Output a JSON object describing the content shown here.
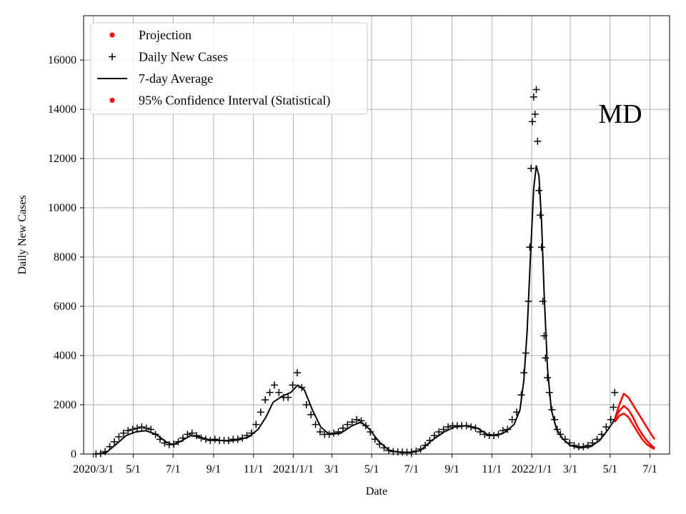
{
  "chart_data": {
    "type": "scatter",
    "xlabel": "Date",
    "ylabel": "Daily New Cases",
    "annotation": "MD",
    "grid": true,
    "legend_position": "top-left",
    "x_range": [
      "2020-02-15",
      "2022-07-31"
    ],
    "ylim": [
      0,
      17800
    ],
    "y_ticks": [
      0,
      2000,
      4000,
      6000,
      8000,
      10000,
      12000,
      14000,
      16000
    ],
    "x_ticks": [
      {
        "date": "2020-03-01",
        "label": "2020/3/1"
      },
      {
        "date": "2020-05-01",
        "label": "5/1"
      },
      {
        "date": "2020-07-01",
        "label": "7/1"
      },
      {
        "date": "2020-09-01",
        "label": "9/1"
      },
      {
        "date": "2020-11-01",
        "label": "11/1"
      },
      {
        "date": "2021-01-01",
        "label": "2021/1/1"
      },
      {
        "date": "2021-03-01",
        "label": "3/1"
      },
      {
        "date": "2021-05-01",
        "label": "5/1"
      },
      {
        "date": "2021-07-01",
        "label": "7/1"
      },
      {
        "date": "2021-09-01",
        "label": "9/1"
      },
      {
        "date": "2021-11-01",
        "label": "11/1"
      },
      {
        "date": "2022-01-01",
        "label": "2022/1/1"
      },
      {
        "date": "2022-03-01",
        "label": "3/1"
      },
      {
        "date": "2022-05-01",
        "label": "5/1"
      },
      {
        "date": "2022-07-01",
        "label": "7/1"
      }
    ],
    "legend": [
      {
        "label": "Projection",
        "marker": "dot",
        "color": "#ff0000"
      },
      {
        "label": "Daily New Cases",
        "marker": "plus",
        "color": "#000000"
      },
      {
        "label": "7-day Average",
        "marker": "line",
        "color": "#000000"
      },
      {
        "label": "95% Confidence Interval (Statistical)",
        "marker": "dot",
        "color": "#ff0000"
      }
    ],
    "series": [
      {
        "name": "Daily New Cases",
        "style": "plus",
        "color": "#000000",
        "points": [
          [
            "2020-03-05",
            5
          ],
          [
            "2020-03-12",
            20
          ],
          [
            "2020-03-19",
            100
          ],
          [
            "2020-03-26",
            300
          ],
          [
            "2020-04-02",
            500
          ],
          [
            "2020-04-09",
            700
          ],
          [
            "2020-04-16",
            850
          ],
          [
            "2020-04-23",
            950
          ],
          [
            "2020-04-30",
            1000
          ],
          [
            "2020-05-07",
            1050
          ],
          [
            "2020-05-14",
            1100
          ],
          [
            "2020-05-21",
            1050
          ],
          [
            "2020-05-28",
            1000
          ],
          [
            "2020-06-04",
            800
          ],
          [
            "2020-06-11",
            600
          ],
          [
            "2020-06-18",
            450
          ],
          [
            "2020-06-25",
            380
          ],
          [
            "2020-07-02",
            400
          ],
          [
            "2020-07-09",
            500
          ],
          [
            "2020-07-16",
            650
          ],
          [
            "2020-07-23",
            800
          ],
          [
            "2020-07-30",
            850
          ],
          [
            "2020-08-06",
            750
          ],
          [
            "2020-08-13",
            650
          ],
          [
            "2020-08-20",
            600
          ],
          [
            "2020-08-27",
            550
          ],
          [
            "2020-09-03",
            600
          ],
          [
            "2020-09-10",
            550
          ],
          [
            "2020-09-17",
            550
          ],
          [
            "2020-09-24",
            550
          ],
          [
            "2020-10-01",
            600
          ],
          [
            "2020-10-08",
            600
          ],
          [
            "2020-10-15",
            650
          ],
          [
            "2020-10-22",
            750
          ],
          [
            "2020-10-29",
            850
          ],
          [
            "2020-11-05",
            1200
          ],
          [
            "2020-11-12",
            1700
          ],
          [
            "2020-11-19",
            2200
          ],
          [
            "2020-11-26",
            2500
          ],
          [
            "2020-12-03",
            2800
          ],
          [
            "2020-12-10",
            2500
          ],
          [
            "2020-12-17",
            2300
          ],
          [
            "2020-12-24",
            2300
          ],
          [
            "2020-12-31",
            2800
          ],
          [
            "2021-01-07",
            3300
          ],
          [
            "2021-01-14",
            2700
          ],
          [
            "2021-01-21",
            2000
          ],
          [
            "2021-01-28",
            1600
          ],
          [
            "2021-02-04",
            1200
          ],
          [
            "2021-02-11",
            900
          ],
          [
            "2021-02-18",
            800
          ],
          [
            "2021-02-25",
            800
          ],
          [
            "2021-03-04",
            850
          ],
          [
            "2021-03-11",
            900
          ],
          [
            "2021-03-18",
            1050
          ],
          [
            "2021-03-25",
            1200
          ],
          [
            "2021-04-01",
            1300
          ],
          [
            "2021-04-08",
            1400
          ],
          [
            "2021-04-15",
            1350
          ],
          [
            "2021-04-22",
            1150
          ],
          [
            "2021-04-29",
            900
          ],
          [
            "2021-05-06",
            600
          ],
          [
            "2021-05-13",
            400
          ],
          [
            "2021-05-20",
            250
          ],
          [
            "2021-05-27",
            150
          ],
          [
            "2021-06-03",
            100
          ],
          [
            "2021-06-10",
            90
          ],
          [
            "2021-06-17",
            80
          ],
          [
            "2021-06-24",
            70
          ],
          [
            "2021-07-01",
            80
          ],
          [
            "2021-07-08",
            120
          ],
          [
            "2021-07-15",
            200
          ],
          [
            "2021-07-22",
            350
          ],
          [
            "2021-07-29",
            550
          ],
          [
            "2021-08-05",
            750
          ],
          [
            "2021-08-12",
            900
          ],
          [
            "2021-08-19",
            1000
          ],
          [
            "2021-08-26",
            1100
          ],
          [
            "2021-09-02",
            1150
          ],
          [
            "2021-09-09",
            1150
          ],
          [
            "2021-09-16",
            1150
          ],
          [
            "2021-09-23",
            1150
          ],
          [
            "2021-09-30",
            1100
          ],
          [
            "2021-10-07",
            1050
          ],
          [
            "2021-10-14",
            900
          ],
          [
            "2021-10-21",
            800
          ],
          [
            "2021-10-28",
            750
          ],
          [
            "2021-11-04",
            750
          ],
          [
            "2021-11-11",
            800
          ],
          [
            "2021-11-18",
            950
          ],
          [
            "2021-11-25",
            1000
          ],
          [
            "2021-12-02",
            1400
          ],
          [
            "2021-12-09",
            1700
          ],
          [
            "2021-12-16",
            2400
          ],
          [
            "2021-12-20",
            3300
          ],
          [
            "2021-12-23",
            4100
          ],
          [
            "2021-12-27",
            6200
          ],
          [
            "2021-12-29",
            8400
          ],
          [
            "2021-12-31",
            11600
          ],
          [
            "2022-01-02",
            13500
          ],
          [
            "2022-01-04",
            14500
          ],
          [
            "2022-01-06",
            13800
          ],
          [
            "2022-01-08",
            14800
          ],
          [
            "2022-01-10",
            12700
          ],
          [
            "2022-01-12",
            10700
          ],
          [
            "2022-01-14",
            9700
          ],
          [
            "2022-01-16",
            8400
          ],
          [
            "2022-01-18",
            6200
          ],
          [
            "2022-01-20",
            4800
          ],
          [
            "2022-01-22",
            3900
          ],
          [
            "2022-01-25",
            3100
          ],
          [
            "2022-01-28",
            2500
          ],
          [
            "2022-02-01",
            1800
          ],
          [
            "2022-02-05",
            1400
          ],
          [
            "2022-02-09",
            1000
          ],
          [
            "2022-02-14",
            800
          ],
          [
            "2022-02-21",
            600
          ],
          [
            "2022-02-28",
            450
          ],
          [
            "2022-03-07",
            350
          ],
          [
            "2022-03-14",
            300
          ],
          [
            "2022-03-21",
            300
          ],
          [
            "2022-03-28",
            350
          ],
          [
            "2022-04-04",
            450
          ],
          [
            "2022-04-11",
            600
          ],
          [
            "2022-04-18",
            800
          ],
          [
            "2022-04-25",
            1100
          ],
          [
            "2022-05-02",
            1400
          ],
          [
            "2022-05-06",
            1900
          ],
          [
            "2022-05-08",
            2500
          ]
        ]
      },
      {
        "name": "7-day Average",
        "style": "line",
        "color": "#000000",
        "points": [
          [
            "2020-03-05",
            0
          ],
          [
            "2020-03-20",
            50
          ],
          [
            "2020-04-05",
            400
          ],
          [
            "2020-04-20",
            750
          ],
          [
            "2020-05-05",
            900
          ],
          [
            "2020-05-20",
            950
          ],
          [
            "2020-06-05",
            800
          ],
          [
            "2020-06-20",
            500
          ],
          [
            "2020-07-01",
            380
          ],
          [
            "2020-07-15",
            550
          ],
          [
            "2020-07-28",
            750
          ],
          [
            "2020-08-10",
            700
          ],
          [
            "2020-08-25",
            580
          ],
          [
            "2020-09-10",
            550
          ],
          [
            "2020-09-25",
            530
          ],
          [
            "2020-10-10",
            580
          ],
          [
            "2020-10-25",
            700
          ],
          [
            "2020-11-08",
            1000
          ],
          [
            "2020-11-20",
            1500
          ],
          [
            "2020-12-01",
            2100
          ],
          [
            "2020-12-15",
            2350
          ],
          [
            "2020-12-28",
            2500
          ],
          [
            "2021-01-08",
            2800
          ],
          [
            "2021-01-18",
            2600
          ],
          [
            "2021-01-30",
            1800
          ],
          [
            "2021-02-12",
            1100
          ],
          [
            "2021-02-25",
            800
          ],
          [
            "2021-03-15",
            850
          ],
          [
            "2021-04-01",
            1150
          ],
          [
            "2021-04-15",
            1300
          ],
          [
            "2021-04-28",
            1000
          ],
          [
            "2021-05-12",
            500
          ],
          [
            "2021-05-28",
            150
          ],
          [
            "2021-06-15",
            60
          ],
          [
            "2021-07-01",
            60
          ],
          [
            "2021-07-15",
            150
          ],
          [
            "2021-08-01",
            550
          ],
          [
            "2021-08-20",
            900
          ],
          [
            "2021-09-05",
            1100
          ],
          [
            "2021-09-25",
            1150
          ],
          [
            "2021-10-10",
            1050
          ],
          [
            "2021-10-25",
            800
          ],
          [
            "2021-11-08",
            750
          ],
          [
            "2021-11-22",
            900
          ],
          [
            "2021-12-05",
            1200
          ],
          [
            "2021-12-14",
            1800
          ],
          [
            "2021-12-20",
            3000
          ],
          [
            "2021-12-25",
            5000
          ],
          [
            "2021-12-30",
            8000
          ],
          [
            "2022-01-04",
            10800
          ],
          [
            "2022-01-08",
            11700
          ],
          [
            "2022-01-12",
            11300
          ],
          [
            "2022-01-16",
            9500
          ],
          [
            "2022-01-20",
            6500
          ],
          [
            "2022-01-25",
            3500
          ],
          [
            "2022-01-31",
            1800
          ],
          [
            "2022-02-08",
            1000
          ],
          [
            "2022-02-18",
            600
          ],
          [
            "2022-03-01",
            350
          ],
          [
            "2022-03-15",
            250
          ],
          [
            "2022-04-01",
            300
          ],
          [
            "2022-04-15",
            550
          ],
          [
            "2022-04-28",
            1000
          ],
          [
            "2022-05-08",
            1400
          ]
        ]
      },
      {
        "name": "Projection",
        "style": "line",
        "color": "#ff0000",
        "points": [
          [
            "2022-05-08",
            1400
          ],
          [
            "2022-05-15",
            1750
          ],
          [
            "2022-05-22",
            1950
          ],
          [
            "2022-05-29",
            1800
          ],
          [
            "2022-06-05",
            1500
          ],
          [
            "2022-06-12",
            1100
          ],
          [
            "2022-06-19",
            800
          ],
          [
            "2022-06-26",
            550
          ],
          [
            "2022-07-03",
            350
          ],
          [
            "2022-07-08",
            250
          ]
        ]
      },
      {
        "name": "95% Confidence Interval (Statistical) upper",
        "style": "line",
        "color": "#ff0000",
        "points": [
          [
            "2022-05-08",
            1400
          ],
          [
            "2022-05-15",
            2000
          ],
          [
            "2022-05-22",
            2450
          ],
          [
            "2022-05-29",
            2300
          ],
          [
            "2022-06-05",
            2000
          ],
          [
            "2022-06-12",
            1700
          ],
          [
            "2022-06-19",
            1400
          ],
          [
            "2022-06-26",
            1100
          ],
          [
            "2022-07-03",
            800
          ],
          [
            "2022-07-08",
            600
          ]
        ]
      },
      {
        "name": "95% Confidence Interval (Statistical) lower",
        "style": "line",
        "color": "#ff0000",
        "points": [
          [
            "2022-05-08",
            1300
          ],
          [
            "2022-05-15",
            1550
          ],
          [
            "2022-05-22",
            1650
          ],
          [
            "2022-05-29",
            1500
          ],
          [
            "2022-06-05",
            1200
          ],
          [
            "2022-06-12",
            900
          ],
          [
            "2022-06-19",
            600
          ],
          [
            "2022-06-26",
            400
          ],
          [
            "2022-07-03",
            270
          ],
          [
            "2022-07-08",
            200
          ]
        ]
      }
    ]
  }
}
